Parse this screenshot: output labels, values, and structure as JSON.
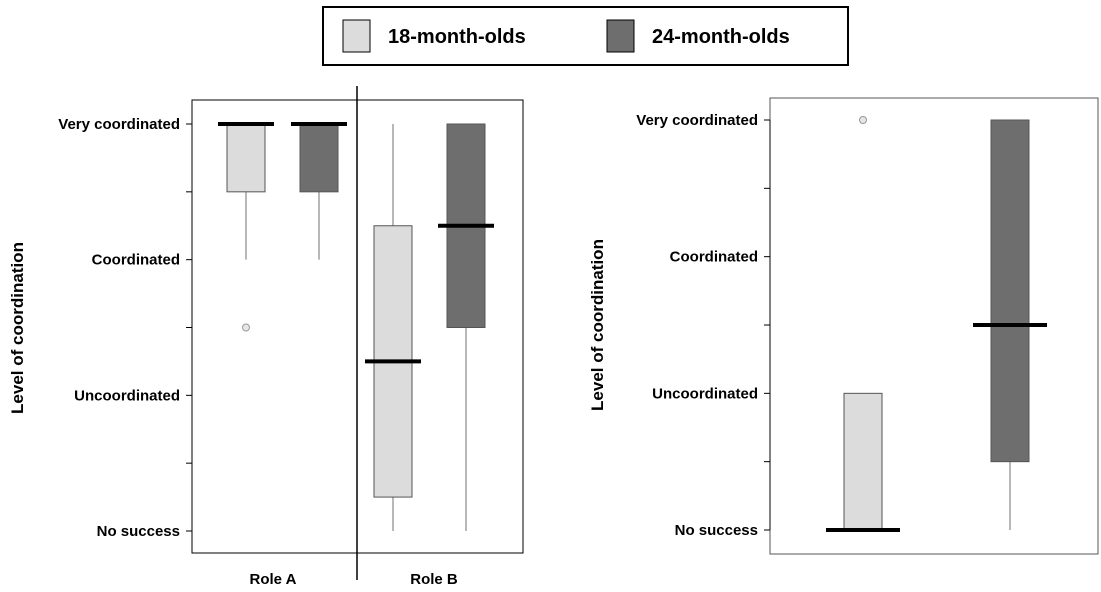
{
  "colors": {
    "light": "#dcdcdc",
    "dark": "#6e6e6e",
    "axis": "#000000",
    "whisker": "#888888"
  },
  "legend": {
    "items": [
      {
        "label": "18-month-olds",
        "color": "#dcdcdc"
      },
      {
        "label": "24-month-olds",
        "color": "#6e6e6e"
      }
    ]
  },
  "chart_data": [
    {
      "type": "box",
      "ylabel": "Level of coordination",
      "yticks": [
        {
          "value": 0,
          "label": "No success"
        },
        {
          "value": 1,
          "label": "Uncoordinated"
        },
        {
          "value": 2,
          "label": "Coordinated"
        },
        {
          "value": 3,
          "label": "Very coordinated"
        }
      ],
      "ylim": [
        0,
        3
      ],
      "categories": [
        "Role A",
        "Role B"
      ],
      "boxes": [
        {
          "category": "Role A",
          "series": "18-month-olds",
          "whisker_low": 2.0,
          "q1": 2.5,
          "median": 3.0,
          "q3": 3.0,
          "whisker_high": 3.0,
          "outliers": [
            1.5
          ]
        },
        {
          "category": "Role A",
          "series": "24-month-olds",
          "whisker_low": 2.0,
          "q1": 2.5,
          "median": 3.0,
          "q3": 3.0,
          "whisker_high": 3.0,
          "outliers": []
        },
        {
          "category": "Role B",
          "series": "18-month-olds",
          "whisker_low": 0.0,
          "q1": 0.25,
          "median": 1.25,
          "q3": 2.25,
          "whisker_high": 3.0,
          "outliers": []
        },
        {
          "category": "Role B",
          "series": "24-month-olds",
          "whisker_low": 0.0,
          "q1": 1.5,
          "median": 2.25,
          "q3": 3.0,
          "whisker_high": 3.0,
          "outliers": []
        }
      ]
    },
    {
      "type": "box",
      "ylabel": "Level of coordination",
      "yticks": [
        {
          "value": 0,
          "label": "No success"
        },
        {
          "value": 1,
          "label": "Uncoordinated"
        },
        {
          "value": 2,
          "label": "Coordinated"
        },
        {
          "value": 3,
          "label": "Very coordinated"
        }
      ],
      "ylim": [
        0,
        3
      ],
      "boxes": [
        {
          "series": "18-month-olds",
          "whisker_low": 0.0,
          "q1": 0.0,
          "median": 0.0,
          "q3": 1.0,
          "whisker_high": 1.0,
          "outliers": [
            3.0
          ]
        },
        {
          "series": "24-month-olds",
          "whisker_low": 0.0,
          "q1": 0.5,
          "median": 1.5,
          "q3": 3.0,
          "whisker_high": 3.0,
          "outliers": []
        }
      ]
    }
  ]
}
